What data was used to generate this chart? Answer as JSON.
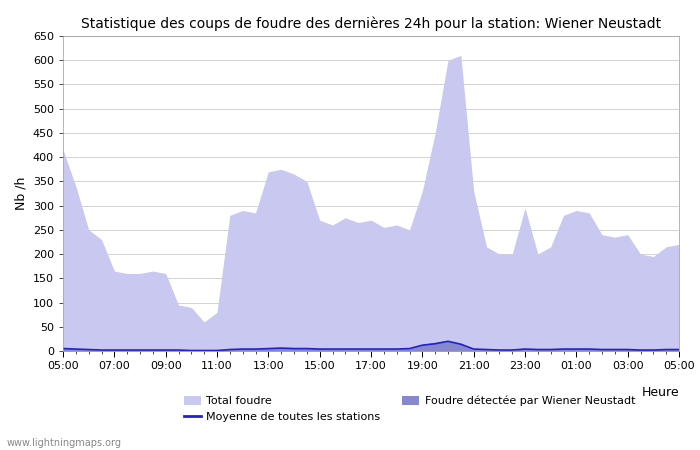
{
  "title": "Statistique des coups de foudre des dernières 24h pour la station: Wiener Neustadt",
  "xlabel": "Heure",
  "ylabel": "Nb /h",
  "ylim": [
    0,
    650
  ],
  "yticks": [
    0,
    50,
    100,
    150,
    200,
    250,
    300,
    350,
    400,
    450,
    500,
    550,
    600,
    650
  ],
  "xtick_labels": [
    "05:00",
    "07:00",
    "09:00",
    "11:00",
    "13:00",
    "15:00",
    "17:00",
    "19:00",
    "21:00",
    "23:00",
    "01:00",
    "03:00",
    "05:00"
  ],
  "bg_color": "#ffffff",
  "plot_bg_color": "#ffffff",
  "grid_color": "#cccccc",
  "fill_total_color": "#c8c8f0",
  "fill_station_color": "#8888cc",
  "line_color": "#2222cc",
  "watermark": "www.lightningmaps.org",
  "legend_total": "Total foudre",
  "legend_moyenne": "Moyenne de toutes les stations",
  "legend_station": "Foudre détectée par Wiener Neustadt",
  "x": [
    5.0,
    5.5,
    6.0,
    6.5,
    7.0,
    7.5,
    8.0,
    8.5,
    9.0,
    9.5,
    10.0,
    10.5,
    11.0,
    11.5,
    12.0,
    12.5,
    13.0,
    13.5,
    14.0,
    14.5,
    15.0,
    15.5,
    16.0,
    16.5,
    17.0,
    17.5,
    18.0,
    18.5,
    19.0,
    19.5,
    20.0,
    20.5,
    21.0,
    21.5,
    22.0,
    22.5,
    23.0,
    23.5,
    24.0,
    24.5,
    25.0,
    25.5,
    26.0,
    26.5,
    27.0,
    27.5,
    28.0,
    28.5,
    29.0
  ],
  "total_foudre": [
    415,
    340,
    250,
    230,
    165,
    160,
    160,
    165,
    160,
    95,
    90,
    60,
    80,
    280,
    290,
    285,
    370,
    375,
    365,
    350,
    270,
    260,
    275,
    265,
    270,
    255,
    260,
    250,
    330,
    450,
    600,
    610,
    330,
    215,
    200,
    200,
    295,
    200,
    215,
    280,
    290,
    285,
    240,
    235,
    240,
    200,
    195,
    215,
    220
  ],
  "station_foudre": [
    8,
    5,
    3,
    2,
    2,
    2,
    2,
    2,
    2,
    2,
    2,
    1,
    1,
    4,
    5,
    5,
    7,
    7,
    6,
    6,
    5,
    4,
    4,
    4,
    4,
    4,
    4,
    6,
    14,
    18,
    22,
    16,
    5,
    3,
    2,
    2,
    4,
    3,
    3,
    5,
    5,
    5,
    4,
    4,
    4,
    3,
    3,
    4,
    4
  ],
  "moyenne": [
    5,
    4,
    3,
    2,
    2,
    2,
    2,
    2,
    2,
    2,
    1,
    1,
    1,
    3,
    4,
    4,
    5,
    6,
    5,
    5,
    4,
    4,
    4,
    4,
    4,
    4,
    4,
    5,
    12,
    15,
    20,
    14,
    4,
    3,
    2,
    2,
    4,
    3,
    3,
    4,
    4,
    4,
    3,
    3,
    3,
    2,
    2,
    3,
    3
  ]
}
